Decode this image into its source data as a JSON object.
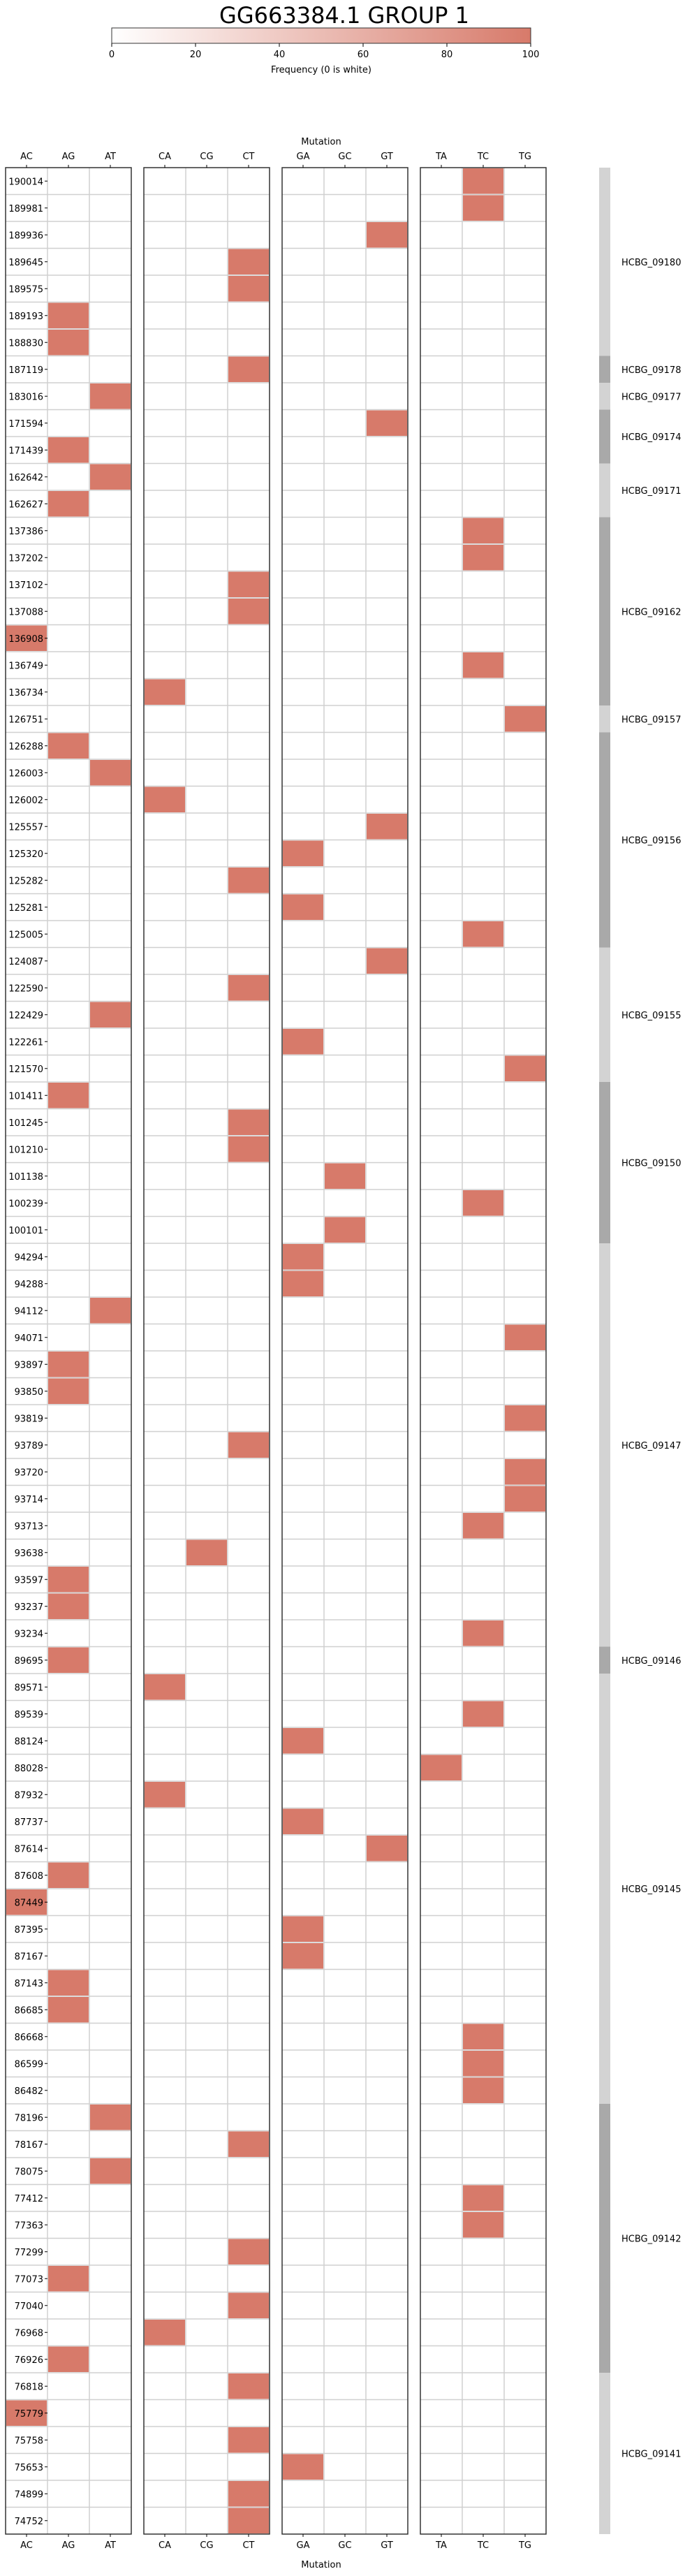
{
  "chart_data": {
    "type": "heatmap",
    "title": "GG663384.1 GROUP 1",
    "colorbar": {
      "label": "Frequency (0 is white)",
      "range": [
        0,
        100
      ],
      "ticks": [
        "0",
        "20",
        "40",
        "60",
        "80",
        "100"
      ],
      "color_low": "#ffffff",
      "color_high": "#d77a6a"
    },
    "xlabel": "Mutation",
    "mutation_groups": [
      [
        "AC",
        "AG",
        "AT"
      ],
      [
        "CA",
        "CG",
        "CT"
      ],
      [
        "GA",
        "GC",
        "GT"
      ],
      [
        "TA",
        "TC",
        "TG"
      ]
    ],
    "rows": [
      "190014",
      "189981",
      "189936",
      "189645",
      "189575",
      "189193",
      "188830",
      "187119",
      "183016",
      "171594",
      "171439",
      "162642",
      "162627",
      "137386",
      "137202",
      "137102",
      "137088",
      "136908",
      "136749",
      "136734",
      "126751",
      "126288",
      "126003",
      "126002",
      "125557",
      "125320",
      "125282",
      "125281",
      "125005",
      "124087",
      "122590",
      "122429",
      "122261",
      "121570",
      "101411",
      "101245",
      "101210",
      "101138",
      "100239",
      "100101",
      "94294",
      "94288",
      "94112",
      "94071",
      "93897",
      "93850",
      "93819",
      "93789",
      "93720",
      "93714",
      "93713",
      "93638",
      "93597",
      "93237",
      "93234",
      "89695",
      "89571",
      "89539",
      "88124",
      "88028",
      "87932",
      "87737",
      "87614",
      "87608",
      "87449",
      "87395",
      "87167",
      "87143",
      "86685",
      "86668",
      "86599",
      "86482",
      "78196",
      "78167",
      "78075",
      "77412",
      "77363",
      "77299",
      "77073",
      "77040",
      "76968",
      "76926",
      "76818",
      "75779",
      "75758",
      "75653",
      "74899",
      "74752"
    ],
    "cells": [
      {
        "row": "190014",
        "mutation": "TC",
        "value": 100
      },
      {
        "row": "189981",
        "mutation": "TC",
        "value": 100
      },
      {
        "row": "189936",
        "mutation": "GT",
        "value": 100
      },
      {
        "row": "189645",
        "mutation": "CT",
        "value": 100
      },
      {
        "row": "189575",
        "mutation": "CT",
        "value": 100
      },
      {
        "row": "189193",
        "mutation": "AG",
        "value": 100
      },
      {
        "row": "188830",
        "mutation": "AG",
        "value": 100
      },
      {
        "row": "187119",
        "mutation": "CT",
        "value": 100
      },
      {
        "row": "183016",
        "mutation": "AT",
        "value": 100
      },
      {
        "row": "171594",
        "mutation": "GT",
        "value": 100
      },
      {
        "row": "171439",
        "mutation": "AG",
        "value": 100
      },
      {
        "row": "162642",
        "mutation": "AT",
        "value": 100
      },
      {
        "row": "162627",
        "mutation": "AG",
        "value": 100
      },
      {
        "row": "137386",
        "mutation": "TC",
        "value": 100
      },
      {
        "row": "137202",
        "mutation": "TC",
        "value": 100
      },
      {
        "row": "137102",
        "mutation": "CT",
        "value": 100
      },
      {
        "row": "137088",
        "mutation": "CT",
        "value": 100
      },
      {
        "row": "136908",
        "mutation": "AC",
        "value": 100
      },
      {
        "row": "136749",
        "mutation": "TC",
        "value": 100
      },
      {
        "row": "136734",
        "mutation": "CA",
        "value": 100
      },
      {
        "row": "126751",
        "mutation": "TG",
        "value": 100
      },
      {
        "row": "126288",
        "mutation": "AG",
        "value": 100
      },
      {
        "row": "126003",
        "mutation": "AT",
        "value": 100
      },
      {
        "row": "126002",
        "mutation": "CA",
        "value": 100
      },
      {
        "row": "125557",
        "mutation": "GT",
        "value": 100
      },
      {
        "row": "125320",
        "mutation": "GA",
        "value": 100
      },
      {
        "row": "125282",
        "mutation": "CT",
        "value": 100
      },
      {
        "row": "125281",
        "mutation": "GA",
        "value": 100
      },
      {
        "row": "125005",
        "mutation": "TC",
        "value": 100
      },
      {
        "row": "124087",
        "mutation": "GT",
        "value": 100
      },
      {
        "row": "122590",
        "mutation": "CT",
        "value": 100
      },
      {
        "row": "122429",
        "mutation": "AT",
        "value": 100
      },
      {
        "row": "122261",
        "mutation": "GA",
        "value": 100
      },
      {
        "row": "121570",
        "mutation": "TG",
        "value": 100
      },
      {
        "row": "101411",
        "mutation": "AG",
        "value": 100
      },
      {
        "row": "101245",
        "mutation": "CT",
        "value": 100
      },
      {
        "row": "101210",
        "mutation": "CT",
        "value": 100
      },
      {
        "row": "101138",
        "mutation": "GC",
        "value": 100
      },
      {
        "row": "100239",
        "mutation": "TC",
        "value": 100
      },
      {
        "row": "100101",
        "mutation": "GC",
        "value": 100
      },
      {
        "row": "94294",
        "mutation": "GA",
        "value": 100
      },
      {
        "row": "94288",
        "mutation": "GA",
        "value": 100
      },
      {
        "row": "94112",
        "mutation": "AT",
        "value": 100
      },
      {
        "row": "94071",
        "mutation": "TG",
        "value": 100
      },
      {
        "row": "93897",
        "mutation": "AG",
        "value": 100
      },
      {
        "row": "93850",
        "mutation": "AG",
        "value": 100
      },
      {
        "row": "93819",
        "mutation": "TG",
        "value": 100
      },
      {
        "row": "93789",
        "mutation": "CT",
        "value": 100
      },
      {
        "row": "93720",
        "mutation": "TG",
        "value": 100
      },
      {
        "row": "93714",
        "mutation": "TG",
        "value": 100
      },
      {
        "row": "93713",
        "mutation": "TC",
        "value": 100
      },
      {
        "row": "93638",
        "mutation": "CG",
        "value": 100
      },
      {
        "row": "93597",
        "mutation": "AG",
        "value": 100
      },
      {
        "row": "93237",
        "mutation": "AG",
        "value": 100
      },
      {
        "row": "93234",
        "mutation": "TC",
        "value": 100
      },
      {
        "row": "89695",
        "mutation": "AG",
        "value": 100
      },
      {
        "row": "89571",
        "mutation": "CA",
        "value": 100
      },
      {
        "row": "89539",
        "mutation": "TC",
        "value": 100
      },
      {
        "row": "88124",
        "mutation": "GA",
        "value": 100
      },
      {
        "row": "88028",
        "mutation": "TA",
        "value": 100
      },
      {
        "row": "87932",
        "mutation": "CA",
        "value": 100
      },
      {
        "row": "87737",
        "mutation": "GA",
        "value": 100
      },
      {
        "row": "87614",
        "mutation": "GT",
        "value": 100
      },
      {
        "row": "87608",
        "mutation": "AG",
        "value": 100
      },
      {
        "row": "87449",
        "mutation": "AC",
        "value": 100
      },
      {
        "row": "87395",
        "mutation": "GA",
        "value": 100
      },
      {
        "row": "87167",
        "mutation": "GA",
        "value": 100
      },
      {
        "row": "87143",
        "mutation": "AG",
        "value": 100
      },
      {
        "row": "86685",
        "mutation": "AG",
        "value": 100
      },
      {
        "row": "86668",
        "mutation": "TC",
        "value": 100
      },
      {
        "row": "86599",
        "mutation": "TC",
        "value": 100
      },
      {
        "row": "86482",
        "mutation": "TC",
        "value": 100
      },
      {
        "row": "78196",
        "mutation": "AT",
        "value": 100
      },
      {
        "row": "78167",
        "mutation": "CT",
        "value": 100
      },
      {
        "row": "78075",
        "mutation": "AT",
        "value": 100
      },
      {
        "row": "77412",
        "mutation": "TC",
        "value": 100
      },
      {
        "row": "77363",
        "mutation": "TC",
        "value": 100
      },
      {
        "row": "77299",
        "mutation": "CT",
        "value": 100
      },
      {
        "row": "77073",
        "mutation": "AG",
        "value": 100
      },
      {
        "row": "77040",
        "mutation": "CT",
        "value": 100
      },
      {
        "row": "76968",
        "mutation": "CA",
        "value": 100
      },
      {
        "row": "76926",
        "mutation": "AG",
        "value": 100
      },
      {
        "row": "76818",
        "mutation": "CT",
        "value": 100
      },
      {
        "row": "75779",
        "mutation": "AC",
        "value": 100
      },
      {
        "row": "75758",
        "mutation": "CT",
        "value": 100
      },
      {
        "row": "75653",
        "mutation": "GA",
        "value": 100
      },
      {
        "row": "74899",
        "mutation": "CT",
        "value": 100
      },
      {
        "row": "74752",
        "mutation": "CT",
        "value": 100
      }
    ],
    "genes": [
      {
        "name": "HCBG_09180",
        "first": "190014",
        "last": "188830",
        "shade": "light"
      },
      {
        "name": "HCBG_09178",
        "first": "187119",
        "last": "187119",
        "shade": "dark"
      },
      {
        "name": "HCBG_09177",
        "first": "183016",
        "last": "183016",
        "shade": "light"
      },
      {
        "name": "HCBG_09174",
        "first": "171594",
        "last": "171439",
        "shade": "dark"
      },
      {
        "name": "HCBG_09171",
        "first": "162642",
        "last": "162627",
        "shade": "light"
      },
      {
        "name": "HCBG_09162",
        "first": "137386",
        "last": "136734",
        "shade": "dark"
      },
      {
        "name": "HCBG_09157",
        "first": "126751",
        "last": "126751",
        "shade": "light"
      },
      {
        "name": "HCBG_09156",
        "first": "126288",
        "last": "125005",
        "shade": "dark"
      },
      {
        "name": "HCBG_09155",
        "first": "124087",
        "last": "121570",
        "shade": "light"
      },
      {
        "name": "HCBG_09150",
        "first": "101411",
        "last": "100101",
        "shade": "dark"
      },
      {
        "name": "HCBG_09147",
        "first": "94294",
        "last": "93234",
        "shade": "light"
      },
      {
        "name": "HCBG_09146",
        "first": "89695",
        "last": "89695",
        "shade": "dark"
      },
      {
        "name": "HCBG_09145",
        "first": "89571",
        "last": "86482",
        "shade": "light"
      },
      {
        "name": "HCBG_09142",
        "first": "78196",
        "last": "76926",
        "shade": "dark"
      },
      {
        "name": "HCBG_09141",
        "first": "76818",
        "last": "74752",
        "shade": "light"
      }
    ],
    "colors": {
      "gene_bar_light": "#d3d3d3",
      "gene_bar_dark": "#a9a9a9",
      "grid_line": "#d0d0d0",
      "panel_border": "#333333"
    }
  }
}
